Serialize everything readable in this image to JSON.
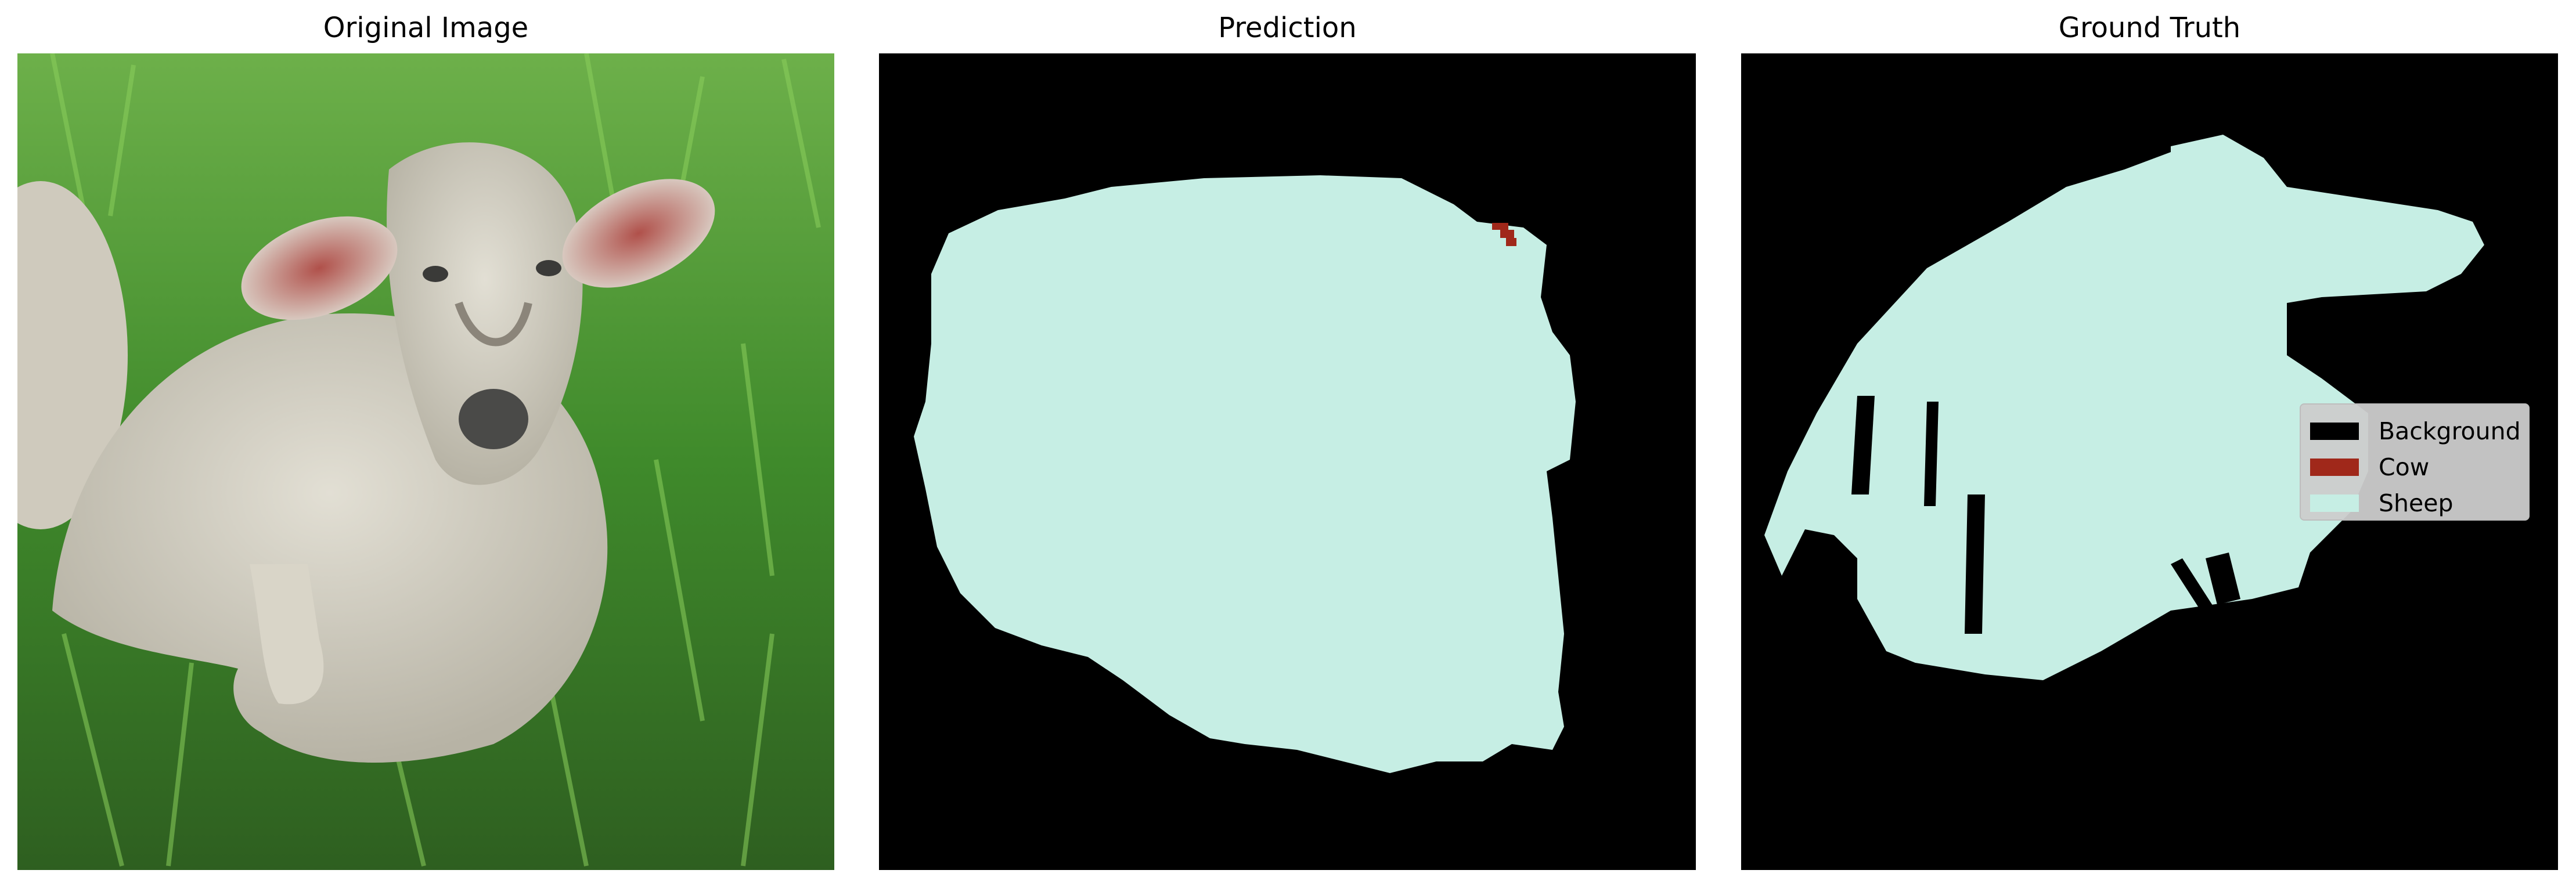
{
  "panels": [
    {
      "title": "Original Image"
    },
    {
      "title": "Prediction"
    },
    {
      "title": "Ground Truth"
    }
  ],
  "legend": {
    "items": [
      {
        "label": "Background",
        "color": "#000000"
      },
      {
        "label": "Cow",
        "color": "#a0281a"
      },
      {
        "label": "Sheep",
        "color": "#c6eee4"
      }
    ]
  },
  "colors": {
    "grass_dark": "#2f6d1f",
    "grass_light": "#5aa33a",
    "wool": "#d3d0c4",
    "ear_inner": "#a45a55",
    "background_class": "#000000",
    "sheep_class": "#c6eee4",
    "cow_class": "#a0281a"
  }
}
